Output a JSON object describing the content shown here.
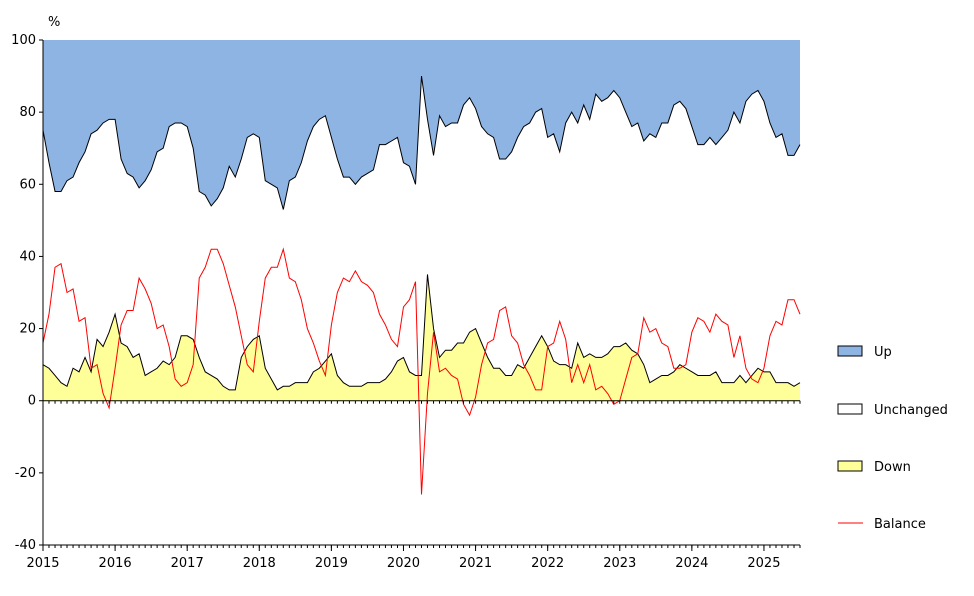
{
  "chart_data": {
    "type": "area",
    "ylabel": "%",
    "ylim": [
      -40,
      100
    ],
    "yticks": [
      -40,
      -20,
      0,
      20,
      40,
      60,
      80,
      100
    ],
    "xlim": [
      2015,
      2025.5
    ],
    "xticks": [
      "2015",
      "2016",
      "2017",
      "2018",
      "2019",
      "2020",
      "2021",
      "2022",
      "2023",
      "2024",
      "2025"
    ],
    "grid": false,
    "legend_position": "right",
    "colors": {
      "up": "#8eb4e3",
      "unchanged": "#ffffff",
      "down": "#ffff99",
      "balance": "#ff0000",
      "outline": "#000000"
    },
    "legend": [
      {
        "key": "up",
        "label": "Up"
      },
      {
        "key": "unchanged",
        "label": "Unchanged"
      },
      {
        "key": "down",
        "label": "Down"
      },
      {
        "key": "balance",
        "label": "Balance"
      }
    ],
    "x": [
      2015,
      2015.083,
      2015.167,
      2015.25,
      2015.333,
      2015.417,
      2015.5,
      2015.583,
      2015.667,
      2015.75,
      2015.833,
      2015.917,
      2016,
      2016.083,
      2016.167,
      2016.25,
      2016.333,
      2016.417,
      2016.5,
      2016.583,
      2016.667,
      2016.75,
      2016.833,
      2016.917,
      2017,
      2017.083,
      2017.167,
      2017.25,
      2017.333,
      2017.417,
      2017.5,
      2017.583,
      2017.667,
      2017.75,
      2017.833,
      2017.917,
      2018,
      2018.083,
      2018.167,
      2018.25,
      2018.333,
      2018.417,
      2018.5,
      2018.583,
      2018.667,
      2018.75,
      2018.833,
      2018.917,
      2019,
      2019.083,
      2019.167,
      2019.25,
      2019.333,
      2019.417,
      2019.5,
      2019.583,
      2019.667,
      2019.75,
      2019.833,
      2019.917,
      2020,
      2020.083,
      2020.167,
      2020.25,
      2020.333,
      2020.417,
      2020.5,
      2020.583,
      2020.667,
      2020.75,
      2020.833,
      2020.917,
      2021,
      2021.083,
      2021.167,
      2021.25,
      2021.333,
      2021.417,
      2021.5,
      2021.583,
      2021.667,
      2021.75,
      2021.833,
      2021.917,
      2022,
      2022.083,
      2022.167,
      2022.25,
      2022.333,
      2022.417,
      2022.5,
      2022.583,
      2022.667,
      2022.75,
      2022.833,
      2022.917,
      2023,
      2023.083,
      2023.167,
      2023.25,
      2023.333,
      2023.417,
      2023.5,
      2023.583,
      2023.667,
      2023.75,
      2023.833,
      2023.917,
      2024,
      2024.083,
      2024.167,
      2024.25,
      2024.333,
      2024.417,
      2024.5,
      2024.583,
      2024.667,
      2024.75,
      2024.833,
      2024.917,
      2025,
      2025.083,
      2025.167,
      2025.25,
      2025.333,
      2025.417,
      2025.5
    ],
    "series": [
      {
        "key": "up",
        "name": "Up",
        "values": [
          75,
          66,
          58,
          58,
          61,
          62,
          66,
          69,
          74,
          75,
          77,
          78,
          78,
          67,
          63,
          62,
          59,
          61,
          64,
          69,
          70,
          76,
          77,
          77,
          76,
          70,
          58,
          57,
          54,
          56,
          59,
          65,
          62,
          67,
          73,
          74,
          73,
          61,
          60,
          59,
          53,
          61,
          62,
          66,
          72,
          76,
          78,
          79,
          73,
          67,
          62,
          62,
          60,
          62,
          63,
          64,
          71,
          71,
          72,
          73,
          66,
          65,
          60,
          90,
          78,
          68,
          79,
          76,
          77,
          77,
          82,
          84,
          81,
          76,
          74,
          73,
          67,
          67,
          69,
          73,
          76,
          77,
          80,
          81,
          73,
          74,
          69,
          77,
          80,
          77,
          82,
          78,
          85,
          83,
          84,
          86,
          84,
          80,
          76,
          77,
          72,
          74,
          73,
          77,
          77,
          82,
          83,
          81,
          76,
          71,
          71,
          73,
          71,
          73,
          75,
          80,
          77,
          83,
          85,
          86,
          83,
          77,
          73,
          74,
          68,
          68,
          71
        ]
      },
      {
        "key": "down",
        "name": "Down",
        "values": [
          10,
          9,
          7,
          5,
          4,
          9,
          8,
          12,
          8,
          17,
          15,
          19,
          24,
          16,
          15,
          12,
          13,
          7,
          8,
          9,
          11,
          10,
          12,
          18,
          18,
          17,
          12,
          8,
          7,
          6,
          4,
          3,
          3,
          12,
          15,
          17,
          18,
          9,
          6,
          3,
          4,
          4,
          5,
          5,
          5,
          8,
          9,
          11,
          13,
          7,
          5,
          4,
          4,
          4,
          5,
          5,
          5,
          6,
          8,
          11,
          12,
          8,
          7,
          7,
          35,
          20,
          12,
          14,
          14,
          16,
          16,
          19,
          20,
          16,
          12,
          9,
          9,
          7,
          7,
          10,
          9,
          12,
          15,
          18,
          15,
          11,
          10,
          10,
          9,
          16,
          12,
          13,
          12,
          12,
          13,
          15,
          15,
          16,
          14,
          13,
          10,
          5,
          6,
          7,
          7,
          8,
          10,
          9,
          8,
          7,
          7,
          7,
          8,
          5,
          5,
          5,
          7,
          5,
          7,
          9,
          8,
          8,
          5,
          5,
          5,
          4,
          5
        ]
      },
      {
        "key": "balance",
        "name": "Balance",
        "values": [
          16,
          24,
          37,
          38,
          30,
          31,
          22,
          23,
          9,
          10,
          2,
          -2,
          9,
          21,
          25,
          25,
          34,
          31,
          27,
          20,
          21,
          15,
          6,
          4,
          5,
          10,
          34,
          37,
          42,
          42,
          38,
          32,
          26,
          18,
          10,
          8,
          22,
          34,
          37,
          37,
          42,
          34,
          33,
          28,
          20,
          16,
          11,
          7,
          21,
          30,
          34,
          33,
          36,
          33,
          32,
          30,
          24,
          21,
          17,
          15,
          26,
          28,
          33,
          -26,
          2,
          19,
          8,
          9,
          7,
          6,
          -1,
          -4,
          1,
          10,
          16,
          17,
          25,
          26,
          18,
          16,
          10,
          7,
          3,
          3,
          15,
          16,
          22,
          17,
          5,
          10,
          5,
          10,
          3,
          4,
          2,
          -1,
          0,
          6,
          12,
          13,
          23,
          19,
          20,
          16,
          15,
          9,
          9,
          10,
          19,
          23,
          22,
          19,
          24,
          22,
          21,
          12,
          18,
          9,
          6,
          5,
          9,
          18,
          22,
          21,
          28,
          28,
          24
        ]
      }
    ]
  }
}
